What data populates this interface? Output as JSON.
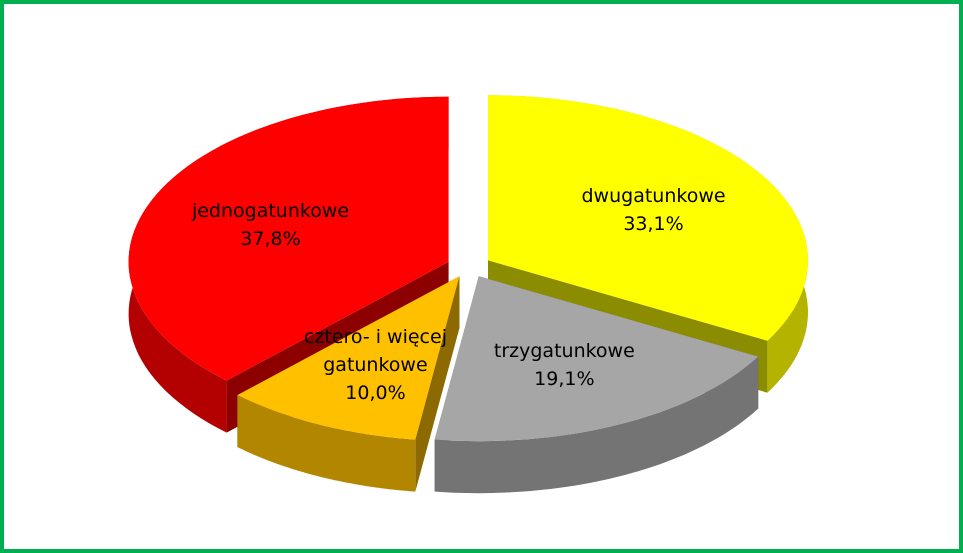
{
  "chart_data": {
    "type": "pie3d",
    "categories": [
      "jednogatunkowe",
      "dwugatunkowe",
      "trzygatunkowe",
      "cztero- i więcej gatunkowe"
    ],
    "values": [
      37.8,
      33.1,
      19.1,
      10.0
    ],
    "value_labels": [
      "37,8%",
      "33,1%",
      "19,1%",
      "10,0%"
    ],
    "colors": [
      "#ff0000",
      "#ffff00",
      "#a6a6a6",
      "#ffc000"
    ]
  }
}
